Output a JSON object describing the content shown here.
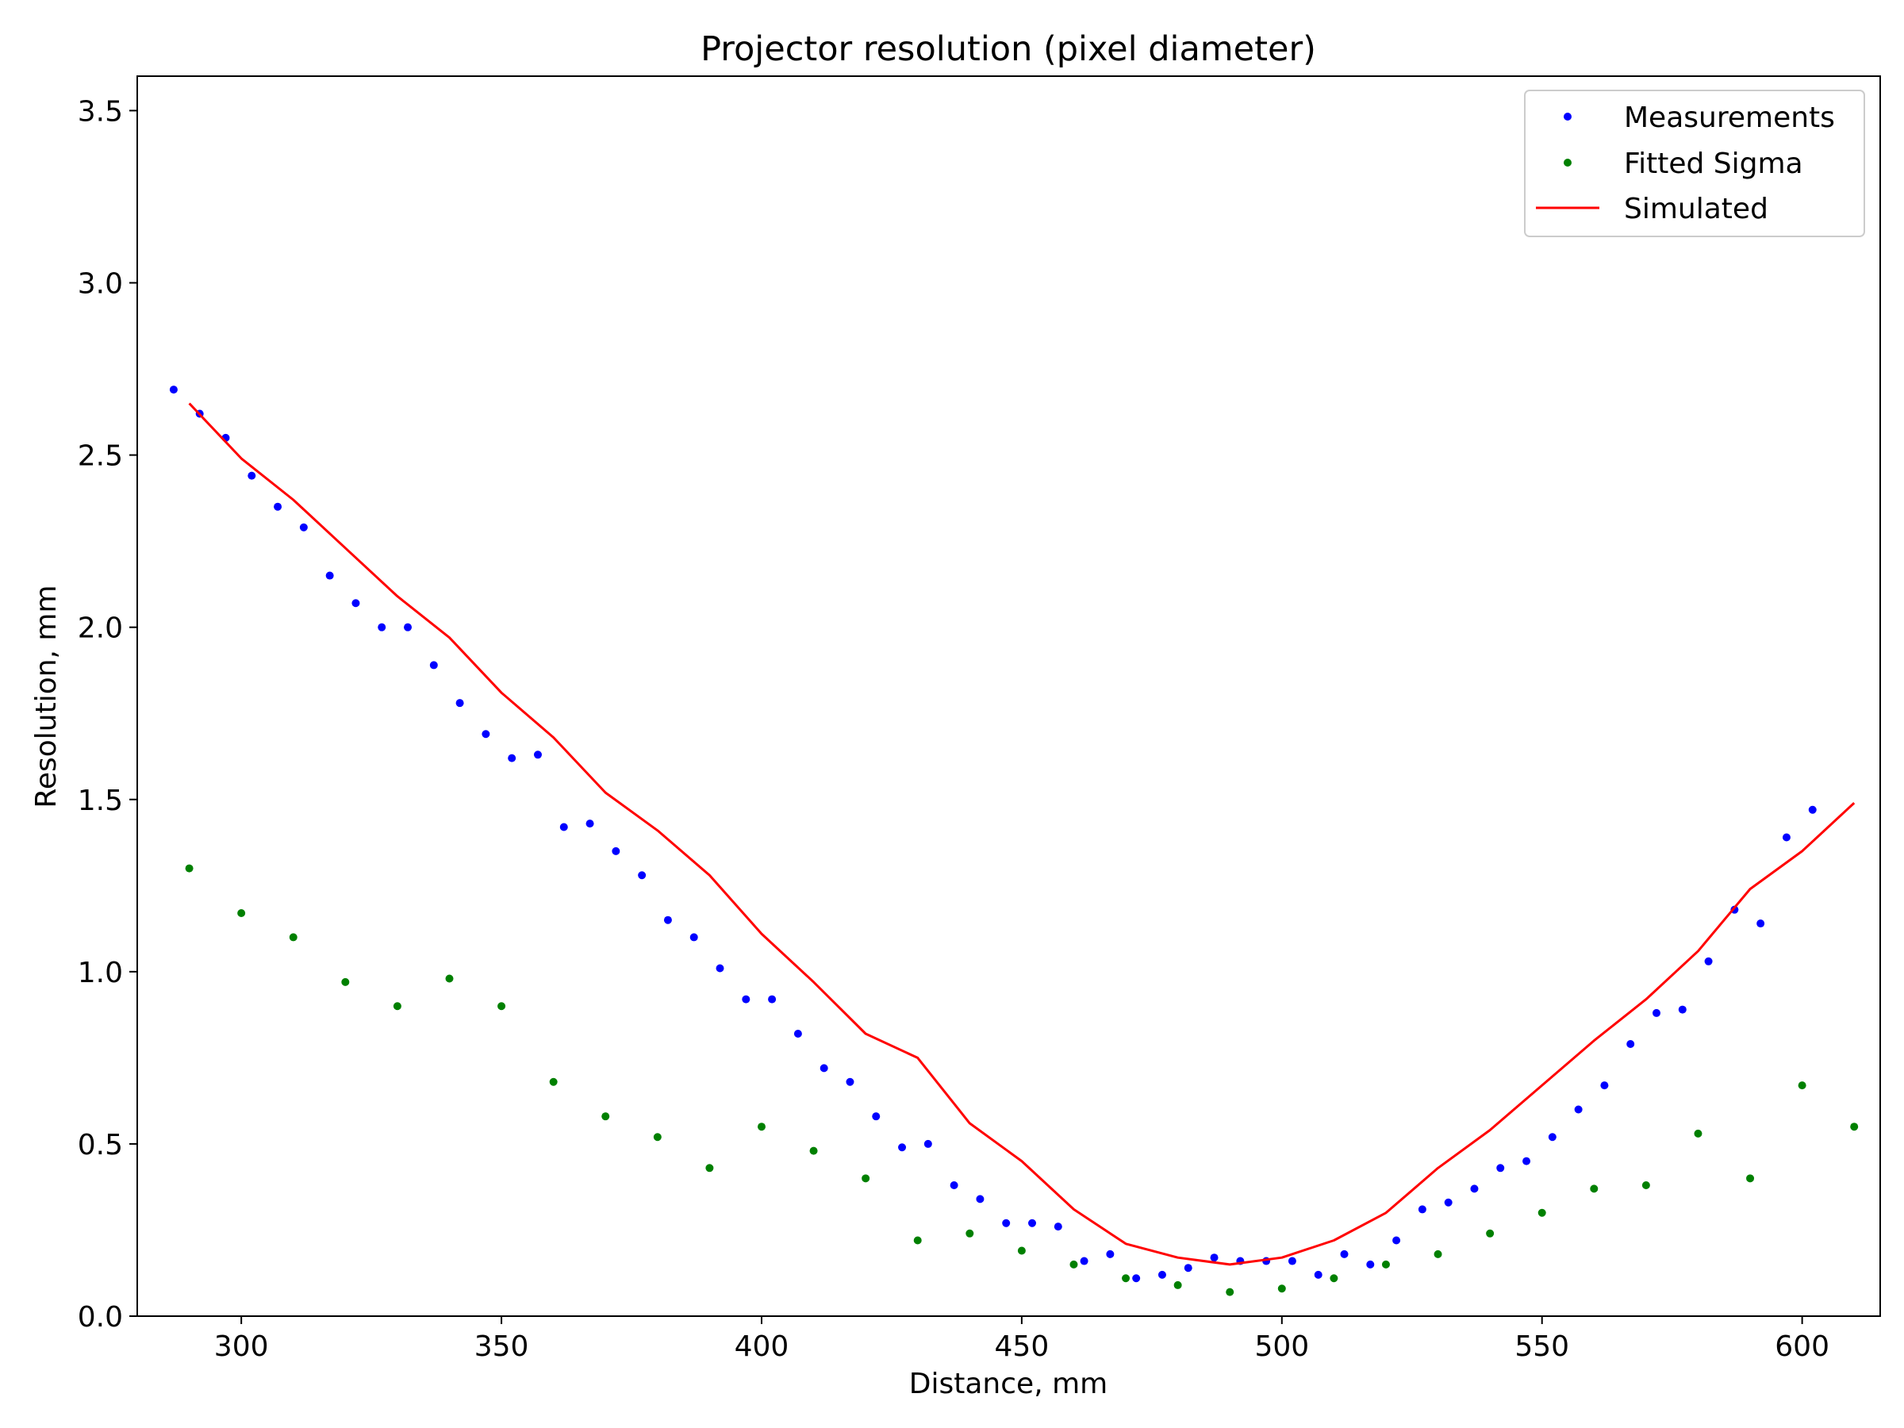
{
  "chart_data": {
    "type": "scatter",
    "title": "Projector resolution (pixel diameter)",
    "xlabel": "Distance, mm",
    "ylabel": "Resolution, mm",
    "xlim": [
      280,
      615
    ],
    "ylim": [
      0,
      3.6
    ],
    "xticks": [
      300,
      350,
      400,
      450,
      500,
      550,
      600
    ],
    "yticks": [
      0.0,
      0.5,
      1.0,
      1.5,
      2.0,
      2.5,
      3.0,
      3.5
    ],
    "xtick_labels": [
      "300",
      "350",
      "400",
      "450",
      "500",
      "550",
      "600"
    ],
    "ytick_labels": [
      "0.0",
      "0.5",
      "1.0",
      "1.5",
      "2.0",
      "2.5",
      "3.0",
      "3.5"
    ],
    "grid": false,
    "legend_position": "top-right",
    "series": [
      {
        "name": "Measurements",
        "kind": "markers",
        "color": "#0000ff",
        "x": [
          287,
          292,
          297,
          302,
          307,
          312,
          317,
          322,
          327,
          332,
          337,
          342,
          347,
          352,
          357,
          362,
          367,
          372,
          377,
          382,
          387,
          392,
          397,
          402,
          407,
          412,
          417,
          422,
          427,
          432,
          437,
          442,
          447,
          452,
          457,
          462,
          467,
          472,
          477,
          482,
          487,
          492,
          497,
          502,
          507,
          512,
          517,
          522,
          527,
          532,
          537,
          542,
          547,
          552,
          557,
          562,
          567,
          572,
          577,
          582,
          587,
          592,
          597,
          602
        ],
        "y": [
          2.69,
          2.62,
          2.55,
          2.44,
          2.35,
          2.29,
          2.15,
          2.07,
          2.0,
          2.0,
          1.89,
          1.78,
          1.69,
          1.62,
          1.63,
          1.42,
          1.43,
          1.35,
          1.28,
          1.15,
          1.1,
          1.01,
          0.92,
          0.92,
          0.82,
          0.72,
          0.68,
          0.58,
          0.49,
          0.5,
          0.38,
          0.34,
          0.27,
          0.27,
          0.26,
          0.16,
          0.18,
          0.11,
          0.12,
          0.14,
          0.17,
          0.16,
          0.16,
          0.16,
          0.12,
          0.18,
          0.15,
          0.22,
          0.31,
          0.33,
          0.37,
          0.43,
          0.45,
          0.52,
          0.6,
          0.67,
          0.79,
          0.88,
          0.89,
          1.03,
          1.18,
          1.14,
          1.39,
          1.47
        ]
      },
      {
        "name": "Fitted Sigma",
        "kind": "markers",
        "color": "#008000",
        "x": [
          290,
          300,
          310,
          320,
          330,
          340,
          350,
          360,
          370,
          380,
          390,
          400,
          410,
          420,
          430,
          440,
          450,
          460,
          470,
          480,
          490,
          500,
          510,
          520,
          530,
          540,
          550,
          560,
          570,
          580,
          590,
          600,
          610
        ],
        "y": [
          1.3,
          1.17,
          1.1,
          0.97,
          0.9,
          0.98,
          0.9,
          0.68,
          0.58,
          0.52,
          0.43,
          0.55,
          0.48,
          0.4,
          0.22,
          0.24,
          0.19,
          0.15,
          0.11,
          0.09,
          0.07,
          0.08,
          0.11,
          0.15,
          0.18,
          0.24,
          0.3,
          0.37,
          0.38,
          0.53,
          0.4,
          0.67,
          0.55
        ]
      },
      {
        "name": "Simulated",
        "kind": "line",
        "color": "#ff0000",
        "x": [
          290,
          300,
          310,
          320,
          330,
          340,
          350,
          360,
          370,
          380,
          390,
          400,
          410,
          420,
          430,
          440,
          450,
          460,
          470,
          480,
          490,
          500,
          510,
          520,
          530,
          540,
          550,
          560,
          570,
          580,
          590,
          600,
          610
        ],
        "y": [
          2.65,
          2.49,
          2.37,
          2.23,
          2.09,
          1.97,
          1.81,
          1.68,
          1.52,
          1.41,
          1.28,
          1.11,
          0.97,
          0.82,
          0.75,
          0.56,
          0.45,
          0.31,
          0.21,
          0.17,
          0.15,
          0.17,
          0.22,
          0.3,
          0.43,
          0.54,
          0.67,
          0.8,
          0.92,
          1.06,
          1.24,
          1.35,
          1.49
        ]
      }
    ]
  }
}
